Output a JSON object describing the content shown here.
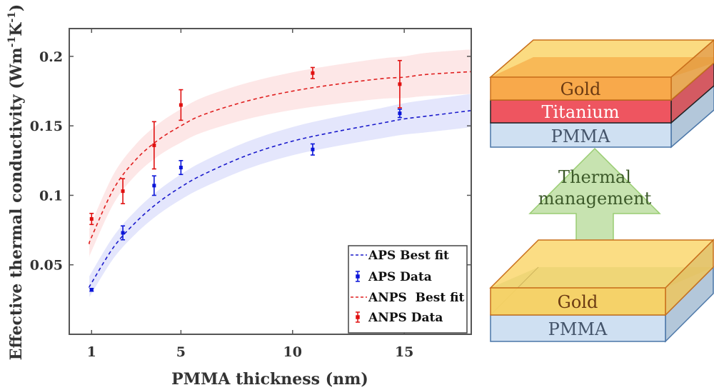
{
  "chart_data": {
    "type": "scatter",
    "title": "",
    "xlabel": "PMMA thickness (nm)",
    "ylabel": "Effective thermal conductivity (Wm",
    "ylabel_sup1": "-1",
    "ylabel_mid": "K",
    "ylabel_sup2": "-1",
    "ylabel_close": ")",
    "xlim": [
      0,
      18
    ],
    "ylim": [
      0,
      0.22
    ],
    "xticks": [
      1,
      5,
      10,
      15
    ],
    "xtick_labels": [
      "1",
      "5",
      "10",
      "15"
    ],
    "yticks": [
      0.05,
      0.1,
      0.15,
      0.2
    ],
    "ytick_labels": [
      "0.05",
      "0.1",
      "0.15",
      "0.2"
    ],
    "grid": false,
    "legend_position": "bottom-right",
    "series": [
      {
        "name": "APS Best fit",
        "kind": "fit-line",
        "color": "#1a1acc",
        "band_color": "#dfe2fb",
        "x": [
          0.9,
          1,
          2,
          3,
          4,
          5,
          6,
          8,
          10,
          12,
          14,
          15,
          16,
          18
        ],
        "y": [
          0.034,
          0.037,
          0.063,
          0.081,
          0.095,
          0.106,
          0.115,
          0.129,
          0.139,
          0.146,
          0.152,
          0.155,
          0.157,
          0.161
        ],
        "band_halfwidth": 0.012
      },
      {
        "name": "APS Data",
        "kind": "errorbar",
        "color": "#0a14d8",
        "x": [
          1.0,
          2.4,
          3.8,
          5.0,
          10.9,
          14.8
        ],
        "y": [
          0.032,
          0.073,
          0.107,
          0.12,
          0.133,
          0.159
        ],
        "err": [
          0.001,
          0.005,
          0.007,
          0.005,
          0.004,
          0.003
        ]
      },
      {
        "name": "ANPS  Best fit",
        "kind": "fit-line",
        "color": "#e02020",
        "band_color": "#fde3e3",
        "x": [
          0.9,
          1,
          2,
          3,
          4,
          5,
          6,
          8,
          10,
          12,
          14,
          15,
          16,
          18
        ],
        "y": [
          0.065,
          0.07,
          0.105,
          0.126,
          0.14,
          0.15,
          0.158,
          0.168,
          0.175,
          0.18,
          0.184,
          0.185,
          0.187,
          0.189
        ],
        "band_halfwidth": 0.016
      },
      {
        "name": "ANPS Data",
        "kind": "errorbar",
        "color": "#e01010",
        "x": [
          1.0,
          2.4,
          3.8,
          5.0,
          10.9,
          14.8
        ],
        "y": [
          0.083,
          0.103,
          0.136,
          0.165,
          0.188,
          0.18
        ],
        "err": [
          0.004,
          0.009,
          0.017,
          0.011,
          0.004,
          0.017
        ]
      }
    ]
  },
  "diagram": {
    "top_stack": {
      "layers": [
        {
          "label": "Gold",
          "fill": "#f7a23c",
          "text_color": "#6b3a12"
        },
        {
          "label": "Titanium",
          "fill": "#ee5560",
          "text_color": "#ffffff"
        },
        {
          "label": "PMMA",
          "fill": "#cfe0f2",
          "text_color": "#44546a"
        }
      ]
    },
    "arrow": {
      "line1": "Thermal",
      "line2": "management",
      "fill": "#c7e3b0",
      "stroke": "#9acd73",
      "text_color": "#3d5a2a"
    },
    "bottom_stack": {
      "layers": [
        {
          "label": "Gold",
          "fill": "#f7d46a",
          "text_color": "#6b3a12"
        },
        {
          "label": "PMMA",
          "fill": "#cfe0f2",
          "text_color": "#44546a"
        }
      ]
    }
  }
}
